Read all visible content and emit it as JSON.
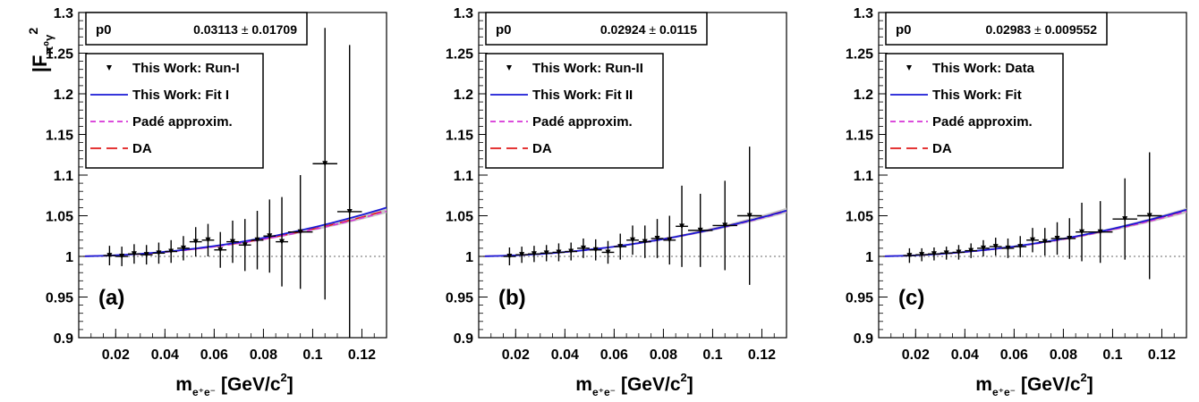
{
  "figure": {
    "ylabel_main": "|F",
    "ylabel_sub": "π⁰γ",
    "ylabel_sup": "2",
    "xlabel_main": "m",
    "xlabel_sub": "e⁺e⁻",
    "xlabel_unit": "[GeV/c",
    "xlabel_unit_sup": "2",
    "xlabel_close": "]"
  },
  "chart_data": [
    {
      "type": "scatter",
      "panel_label": "(a)",
      "xlim": [
        0.005,
        0.13
      ],
      "ylim": [
        0.9,
        1.3
      ],
      "xticks": [
        "0.02",
        "0.04",
        "0.06",
        "0.08",
        "0.1",
        "0.12"
      ],
      "xtick_values": [
        0.02,
        0.04,
        0.06,
        0.08,
        0.1,
        0.12
      ],
      "yticks": [
        "0.9",
        "0.95",
        "1",
        "1.05",
        "1.1",
        "1.15",
        "1.2",
        "1.25",
        "1.3"
      ],
      "ytick_values": [
        0.9,
        0.95,
        1.0,
        1.05,
        1.1,
        1.15,
        1.2,
        1.25,
        1.3
      ],
      "stat_box": {
        "name": "p0",
        "value": "0.03113",
        "pm": "±",
        "error": "0.01709"
      },
      "legend": [
        {
          "label": "This Work: Run-I",
          "style": "marker"
        },
        {
          "label": "This Work: Fit I",
          "style": "solid",
          "color": "#1a1ad6"
        },
        {
          "label": "Padé approxim.",
          "style": "dashed-small",
          "color": "#d633d6"
        },
        {
          "label": "DA",
          "style": "dashed-large",
          "color": "#e01a1a"
        }
      ],
      "fit_slope": 0.03113,
      "points": [
        {
          "x": 0.0175,
          "y": 1.001,
          "xerr": 0.0025,
          "yerr": 0.012
        },
        {
          "x": 0.0225,
          "y": 1.0,
          "xerr": 0.0025,
          "yerr": 0.012
        },
        {
          "x": 0.0275,
          "y": 1.003,
          "xerr": 0.0025,
          "yerr": 0.012
        },
        {
          "x": 0.0325,
          "y": 1.002,
          "xerr": 0.0025,
          "yerr": 0.012
        },
        {
          "x": 0.0375,
          "y": 1.004,
          "xerr": 0.0025,
          "yerr": 0.013
        },
        {
          "x": 0.0425,
          "y": 1.006,
          "xerr": 0.0025,
          "yerr": 0.014
        },
        {
          "x": 0.0475,
          "y": 1.01,
          "xerr": 0.0025,
          "yerr": 0.015
        },
        {
          "x": 0.0525,
          "y": 1.018,
          "xerr": 0.0025,
          "yerr": 0.018
        },
        {
          "x": 0.0575,
          "y": 1.02,
          "xerr": 0.0025,
          "yerr": 0.02
        },
        {
          "x": 0.0625,
          "y": 1.008,
          "xerr": 0.0025,
          "yerr": 0.022
        },
        {
          "x": 0.0675,
          "y": 1.018,
          "xerr": 0.0025,
          "yerr": 0.026
        },
        {
          "x": 0.0725,
          "y": 1.014,
          "xerr": 0.0025,
          "yerr": 0.032
        },
        {
          "x": 0.0775,
          "y": 1.02,
          "xerr": 0.0025,
          "yerr": 0.036
        },
        {
          "x": 0.0825,
          "y": 1.025,
          "xerr": 0.0025,
          "yerr": 0.045
        },
        {
          "x": 0.0875,
          "y": 1.018,
          "xerr": 0.0025,
          "yerr": 0.055
        },
        {
          "x": 0.095,
          "y": 1.03,
          "xerr": 0.005,
          "yerr": 0.07
        },
        {
          "x": 0.105,
          "y": 1.114,
          "xerr": 0.005,
          "yerr": 0.167
        },
        {
          "x": 0.115,
          "y": 1.055,
          "xerr": 0.005,
          "yerr": 0.205
        }
      ]
    },
    {
      "type": "scatter",
      "panel_label": "(b)",
      "xlim": [
        0.005,
        0.13
      ],
      "ylim": [
        0.9,
        1.3
      ],
      "xticks": [
        "0.02",
        "0.04",
        "0.06",
        "0.08",
        "0.1",
        "0.12"
      ],
      "xtick_values": [
        0.02,
        0.04,
        0.06,
        0.08,
        0.1,
        0.12
      ],
      "yticks": [
        "0.9",
        "0.95",
        "1",
        "1.05",
        "1.1",
        "1.15",
        "1.2",
        "1.25",
        "1.3"
      ],
      "ytick_values": [
        0.9,
        0.95,
        1.0,
        1.05,
        1.1,
        1.15,
        1.2,
        1.25,
        1.3
      ],
      "stat_box": {
        "name": "p0",
        "value": "0.02924",
        "pm": "±",
        "error": "0.0115"
      },
      "legend": [
        {
          "label": "This Work: Run-II",
          "style": "marker"
        },
        {
          "label": "This Work: Fit II",
          "style": "solid",
          "color": "#1a1ad6"
        },
        {
          "label": "Padé approxim.",
          "style": "dashed-small",
          "color": "#d633d6"
        },
        {
          "label": "DA",
          "style": "dashed-large",
          "color": "#e01a1a"
        }
      ],
      "fit_slope": 0.02924,
      "points": [
        {
          "x": 0.0175,
          "y": 1.0,
          "xerr": 0.0025,
          "yerr": 0.011
        },
        {
          "x": 0.0225,
          "y": 1.002,
          "xerr": 0.0025,
          "yerr": 0.01
        },
        {
          "x": 0.0275,
          "y": 1.003,
          "xerr": 0.0025,
          "yerr": 0.01
        },
        {
          "x": 0.0325,
          "y": 1.004,
          "xerr": 0.0025,
          "yerr": 0.01
        },
        {
          "x": 0.0375,
          "y": 1.005,
          "xerr": 0.0025,
          "yerr": 0.011
        },
        {
          "x": 0.0425,
          "y": 1.006,
          "xerr": 0.0025,
          "yerr": 0.011
        },
        {
          "x": 0.0475,
          "y": 1.01,
          "xerr": 0.0025,
          "yerr": 0.012
        },
        {
          "x": 0.0525,
          "y": 1.008,
          "xerr": 0.0025,
          "yerr": 0.013
        },
        {
          "x": 0.0575,
          "y": 1.005,
          "xerr": 0.0025,
          "yerr": 0.014
        },
        {
          "x": 0.0625,
          "y": 1.012,
          "xerr": 0.0025,
          "yerr": 0.016
        },
        {
          "x": 0.0675,
          "y": 1.02,
          "xerr": 0.0025,
          "yerr": 0.018
        },
        {
          "x": 0.0725,
          "y": 1.018,
          "xerr": 0.0025,
          "yerr": 0.02
        },
        {
          "x": 0.0775,
          "y": 1.022,
          "xerr": 0.0025,
          "yerr": 0.024
        },
        {
          "x": 0.0825,
          "y": 1.02,
          "xerr": 0.0025,
          "yerr": 0.03
        },
        {
          "x": 0.0875,
          "y": 1.037,
          "xerr": 0.0025,
          "yerr": 0.05
        },
        {
          "x": 0.095,
          "y": 1.032,
          "xerr": 0.005,
          "yerr": 0.045
        },
        {
          "x": 0.105,
          "y": 1.038,
          "xerr": 0.005,
          "yerr": 0.055
        },
        {
          "x": 0.115,
          "y": 1.05,
          "xerr": 0.005,
          "yerr": 0.085
        }
      ]
    },
    {
      "type": "scatter",
      "panel_label": "(c)",
      "xlim": [
        0.005,
        0.13
      ],
      "ylim": [
        0.9,
        1.3
      ],
      "xticks": [
        "0.02",
        "0.04",
        "0.06",
        "0.08",
        "0.1",
        "0.12"
      ],
      "xtick_values": [
        0.02,
        0.04,
        0.06,
        0.08,
        0.1,
        0.12
      ],
      "yticks": [
        "0.9",
        "0.95",
        "1",
        "1.05",
        "1.1",
        "1.15",
        "1.2",
        "1.25",
        "1.3"
      ],
      "ytick_values": [
        0.9,
        0.95,
        1.0,
        1.05,
        1.1,
        1.15,
        1.2,
        1.25,
        1.3
      ],
      "stat_box": {
        "name": "p0",
        "value": "0.02983",
        "pm": "±",
        "error": "0.009552"
      },
      "legend": [
        {
          "label": "This Work: Data",
          "style": "marker"
        },
        {
          "label": "This Work: Fit",
          "style": "solid",
          "color": "#1a1ad6"
        },
        {
          "label": "Padé approxim.",
          "style": "dashed-small",
          "color": "#d633d6"
        },
        {
          "label": "DA",
          "style": "dashed-large",
          "color": "#e01a1a"
        }
      ],
      "fit_slope": 0.02983,
      "points": [
        {
          "x": 0.0175,
          "y": 1.001,
          "xerr": 0.0025,
          "yerr": 0.009
        },
        {
          "x": 0.0225,
          "y": 1.002,
          "xerr": 0.0025,
          "yerr": 0.008
        },
        {
          "x": 0.0275,
          "y": 1.003,
          "xerr": 0.0025,
          "yerr": 0.008
        },
        {
          "x": 0.0325,
          "y": 1.004,
          "xerr": 0.0025,
          "yerr": 0.008
        },
        {
          "x": 0.0375,
          "y": 1.005,
          "xerr": 0.0025,
          "yerr": 0.009
        },
        {
          "x": 0.0425,
          "y": 1.007,
          "xerr": 0.0025,
          "yerr": 0.009
        },
        {
          "x": 0.0475,
          "y": 1.01,
          "xerr": 0.0025,
          "yerr": 0.01
        },
        {
          "x": 0.0525,
          "y": 1.012,
          "xerr": 0.0025,
          "yerr": 0.011
        },
        {
          "x": 0.0575,
          "y": 1.01,
          "xerr": 0.0025,
          "yerr": 0.012
        },
        {
          "x": 0.0625,
          "y": 1.012,
          "xerr": 0.0025,
          "yerr": 0.013
        },
        {
          "x": 0.0675,
          "y": 1.02,
          "xerr": 0.0025,
          "yerr": 0.015
        },
        {
          "x": 0.0725,
          "y": 1.018,
          "xerr": 0.0025,
          "yerr": 0.017
        },
        {
          "x": 0.0775,
          "y": 1.022,
          "xerr": 0.0025,
          "yerr": 0.02
        },
        {
          "x": 0.0825,
          "y": 1.022,
          "xerr": 0.0025,
          "yerr": 0.025
        },
        {
          "x": 0.0875,
          "y": 1.03,
          "xerr": 0.0025,
          "yerr": 0.036
        },
        {
          "x": 0.095,
          "y": 1.03,
          "xerr": 0.005,
          "yerr": 0.038
        },
        {
          "x": 0.105,
          "y": 1.046,
          "xerr": 0.005,
          "yerr": 0.05
        },
        {
          "x": 0.115,
          "y": 1.05,
          "xerr": 0.005,
          "yerr": 0.078
        }
      ]
    }
  ]
}
